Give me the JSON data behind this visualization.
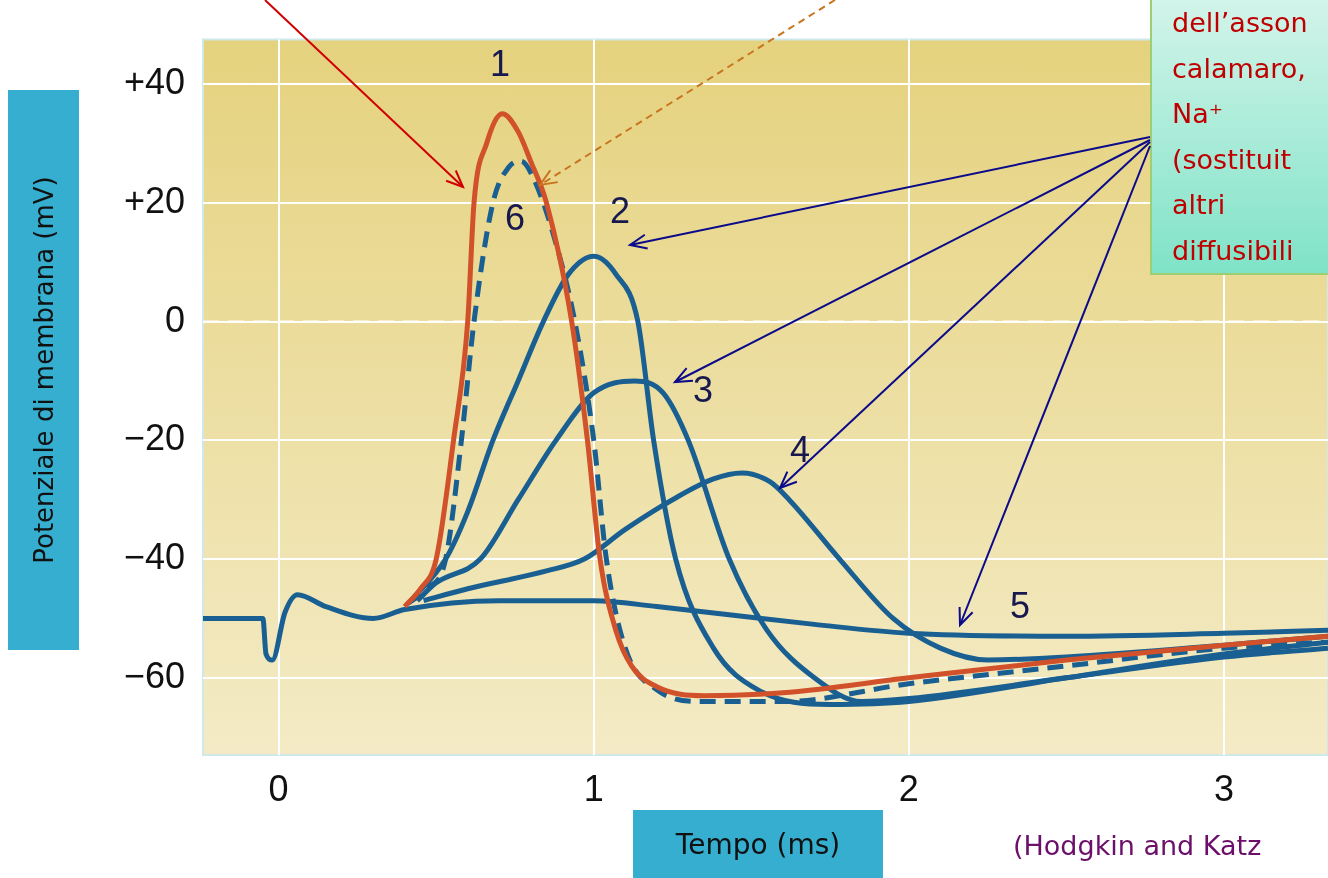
{
  "chart_data": {
    "type": "line",
    "xlabel": "Tempo (ms)",
    "ylabel": "Potenziale di membrana (mV)",
    "xlim": [
      -0.24,
      3.33
    ],
    "ylim": [
      -73,
      47.5
    ],
    "xticks": [
      0,
      1,
      2,
      3
    ],
    "yticks": [
      {
        "value": 40,
        "label": "+40"
      },
      {
        "value": 20,
        "label": "+20"
      },
      0,
      {
        "value": -20,
        "label": "−20"
      },
      {
        "value": -40,
        "label": "−40"
      },
      {
        "value": -60,
        "label": "−60"
      }
    ],
    "grid": true,
    "legend": false,
    "marker": "none",
    "ref_lines": [
      {
        "axis": "y",
        "value": 0,
        "color": "#ffffff",
        "line_style": "dashed"
      }
    ],
    "series": [
      {
        "name": "1",
        "color": "#d0512a",
        "line_style": "solid",
        "x": [
          0.4,
          0.45,
          0.5,
          0.555,
          0.6,
          0.62,
          0.66,
          0.71,
          0.76,
          0.8,
          0.85,
          0.93,
          0.98,
          1.02,
          1.07,
          1.12,
          1.2,
          1.35,
          1.6,
          2.0,
          2.5,
          3.0,
          3.33
        ],
        "values": [
          -48,
          -45,
          -40,
          -20,
          0,
          20,
          30,
          35,
          32,
          27,
          20,
          0,
          -20,
          -40,
          -52,
          -58,
          -61.5,
          -63,
          -62.5,
          -60,
          -57,
          -54.5,
          -53
        ]
      },
      {
        "name": "2",
        "color": "#1a5f91",
        "line_style": "solid",
        "x": [
          0.42,
          0.53,
          0.6,
          0.68,
          0.76,
          0.84,
          0.92,
          1.0,
          1.07,
          1.14,
          1.19,
          1.26,
          1.38,
          1.52,
          1.75,
          2.0,
          2.5,
          3.0,
          3.33
        ],
        "values": [
          -47,
          -40,
          -32,
          -20,
          -10,
          0,
          8,
          11,
          8,
          0,
          -20,
          -40,
          -55,
          -62,
          -64.5,
          -64,
          -60,
          -56,
          -54
        ]
      },
      {
        "name": "3",
        "color": "#1a5f91",
        "line_style": "solid",
        "x": [
          0.44,
          0.5,
          0.64,
          0.76,
          0.88,
          1.0,
          1.13,
          1.22,
          1.3,
          1.43,
          1.55,
          1.7,
          1.85,
          2.0,
          2.5,
          3.0,
          3.33
        ],
        "values": [
          -47,
          -44,
          -40,
          -30,
          -20,
          -12,
          -10,
          -12,
          -20,
          -40,
          -52,
          -60,
          -64,
          -63.5,
          -60,
          -56.5,
          -55
        ]
      },
      {
        "name": "4",
        "color": "#1a5f91",
        "line_style": "solid",
        "x": [
          0.46,
          0.6,
          0.85,
          0.97,
          1.1,
          1.25,
          1.38,
          1.47,
          1.56,
          1.62,
          1.78,
          1.95,
          2.1,
          2.25,
          2.5,
          3.0,
          3.33
        ],
        "values": [
          -47,
          -45,
          -42,
          -40,
          -35,
          -30,
          -26.5,
          -25.5,
          -27,
          -30,
          -40,
          -50,
          -55,
          -57,
          -56.5,
          -54.5,
          -53
        ]
      },
      {
        "name": "5",
        "color": "#1a5f91",
        "line_style": "solid",
        "x": [
          -0.24,
          -0.05,
          -0.04,
          -0.02,
          0.02,
          0.06,
          0.15,
          0.3,
          0.4,
          0.7,
          1.0,
          1.2,
          1.7,
          2.0,
          2.5,
          3.0,
          3.33
        ],
        "values": [
          -50,
          -50,
          -56,
          -57,
          -49,
          -46,
          -48,
          -50,
          -48.5,
          -47,
          -47,
          -48,
          -51,
          -52.5,
          -53,
          -52.5,
          -52
        ]
      },
      {
        "name": "6",
        "color": "#1a5f91",
        "line_style": "dashed",
        "x": [
          0.41,
          0.47,
          0.53,
          0.58,
          0.62,
          0.68,
          0.73,
          0.77,
          0.81,
          0.87,
          0.94,
          1.0,
          1.04,
          1.1,
          1.2,
          1.35,
          1.6,
          2.0,
          2.5,
          3.0,
          3.33
        ],
        "values": [
          -47.5,
          -45,
          -40,
          -20,
          0,
          20,
          26,
          27,
          24,
          15,
          0,
          -20,
          -40,
          -55,
          -62,
          -64,
          -64,
          -61,
          -58,
          -55,
          -54
        ]
      }
    ],
    "annotations": [
      "dell’asson\ncalamaro,\nNa⁺\n(sostituit\naltri\ndiffusibili",
      "(Hodgkin and Katz"
    ]
  }
}
